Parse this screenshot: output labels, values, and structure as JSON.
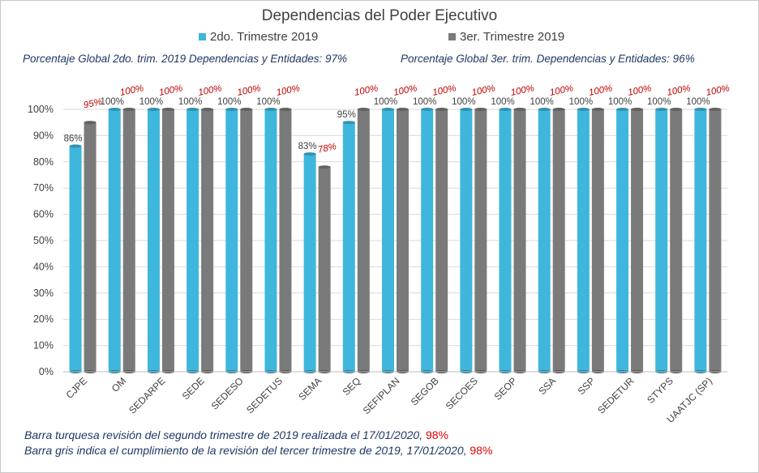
{
  "chart_data": {
    "type": "bar",
    "title": "Dependencias del Poder Ejecutivo",
    "categories": [
      "CJPE",
      "OM",
      "SEDARPE",
      "SEDE",
      "SEDESO",
      "SEDETUS",
      "SEMA",
      "SEQ",
      "SEFIPLAN",
      "SEGOB",
      "SECOES",
      "SEOP",
      "SSA",
      "SSP",
      "SEDETUR",
      "STYPS",
      "UAATJC (SP)"
    ],
    "series": [
      {
        "name": "2do. Trimestre 2019",
        "color": "#3fb6dc",
        "values": [
          86,
          100,
          100,
          100,
          100,
          100,
          83,
          95,
          100,
          100,
          100,
          100,
          100,
          100,
          100,
          100,
          100
        ],
        "labels": [
          "86%",
          "100%",
          "100%",
          "100%",
          "100%",
          "100%",
          "83%",
          "95%",
          "100%",
          "100%",
          "100%",
          "100%",
          "100%",
          "100%",
          "100%",
          "100%",
          "100%"
        ]
      },
      {
        "name": "3er. Trimestre 2019",
        "color": "#7a7a7a",
        "values": [
          95,
          100,
          100,
          100,
          100,
          100,
          78,
          100,
          100,
          100,
          100,
          100,
          100,
          100,
          100,
          100,
          100
        ],
        "labels": [
          "95%",
          "100%",
          "100%",
          "100%",
          "100%",
          "100%",
          "78%",
          "100%",
          "100%",
          "100%",
          "100%",
          "100%",
          "100%",
          "100%",
          "100%",
          "100%",
          "100%"
        ]
      }
    ],
    "ylim": [
      0,
      100
    ],
    "yticks": [
      "0%",
      "10%",
      "20%",
      "30%",
      "40%",
      "50%",
      "60%",
      "70%",
      "80%",
      "90%",
      "100%"
    ],
    "grid": true,
    "legend_position": "top",
    "global_2do": "Porcentaje Global 2do. trim. 2019 Dependencias y Entidades: 97%",
    "global_3er": "Porcentaje Global  3er. trim. Dependencias y Entidades: 96%",
    "label_color_2do": "#404040",
    "label_color_3er": "#c00000"
  },
  "notes": {
    "line1_text": "Barra turquesa  revisión  del  segundo  trimestre  de  2019  realizada  el   17/01/2020, ",
    "line1_pct": "98%",
    "line2_text": "Barra gris indica el cumplimiento  de la revisión del  tercer trimestre de 2019,  17/01/2020,  ",
    "line2_pct": "98%"
  }
}
